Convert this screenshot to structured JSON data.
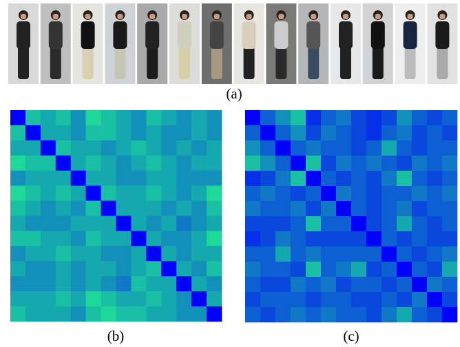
{
  "figure": {
    "colormap": {
      "low": "#0000ff",
      "high": "#20f08c"
    },
    "value_range": [
      0,
      1
    ],
    "panel_a": {
      "label": "(a)"
    },
    "panel_b": {
      "label": "(b)",
      "matrix": [
        [
          0,
          0.8,
          0.7,
          0.8,
          0.6,
          0.9,
          0.8,
          0.7,
          0.6,
          0.8,
          0.7,
          0.6,
          0.7,
          0.6
        ],
        [
          0.8,
          0,
          0.7,
          0.7,
          0.6,
          0.8,
          0.8,
          0.7,
          0.6,
          0.7,
          0.6,
          0.6,
          0.7,
          0.6
        ],
        [
          0.7,
          0.7,
          0,
          0.8,
          0.7,
          0.7,
          0.6,
          0.7,
          0.8,
          0.7,
          0.6,
          0.7,
          0.6,
          0.7
        ],
        [
          0.9,
          0.8,
          0.8,
          0,
          0.7,
          0.8,
          0.7,
          0.6,
          0.7,
          0.8,
          0.7,
          0.6,
          0.7,
          0.7
        ],
        [
          0.6,
          0.7,
          0.7,
          0.7,
          0,
          0.7,
          0.7,
          0.6,
          0.6,
          0.7,
          0.7,
          0.6,
          0.6,
          0.6
        ],
        [
          0.9,
          0.8,
          0.7,
          0.8,
          0.7,
          0,
          0.8,
          0.7,
          0.7,
          0.8,
          0.7,
          0.6,
          0.7,
          0.9
        ],
        [
          0.8,
          0.7,
          0.6,
          0.7,
          0.6,
          0.8,
          0,
          0.7,
          0.7,
          0.7,
          0.6,
          0.7,
          0.6,
          0.8
        ],
        [
          0.7,
          0.6,
          0.6,
          0.6,
          0.7,
          0.7,
          0.7,
          0,
          0.7,
          0.6,
          0.7,
          0.5,
          0.6,
          0.7
        ],
        [
          0.8,
          0.8,
          0.7,
          0.7,
          0.6,
          0.8,
          0.7,
          0.7,
          0,
          0.7,
          0.6,
          0.6,
          0.7,
          0.9
        ],
        [
          0.6,
          0.7,
          0.7,
          0.8,
          0.7,
          0.7,
          0.6,
          0.6,
          0.7,
          0,
          0.7,
          0.6,
          0.7,
          0.7
        ],
        [
          0.7,
          0.6,
          0.6,
          0.7,
          0.6,
          0.7,
          0.7,
          0.6,
          0.7,
          0.8,
          0,
          0.7,
          0.6,
          0.8
        ],
        [
          0.6,
          0.6,
          0.6,
          0.7,
          0.6,
          0.7,
          0.6,
          0.5,
          0.8,
          0.7,
          0.7,
          0,
          0.7,
          0.6
        ],
        [
          0.7,
          0.7,
          0.7,
          0.8,
          0.7,
          0.9,
          0.8,
          0.7,
          0.7,
          0.8,
          0.7,
          0.6,
          0,
          0.7
        ],
        [
          0.8,
          0.7,
          0.7,
          0.7,
          0.6,
          0.8,
          0.9,
          0.8,
          0.8,
          0.7,
          0.7,
          0.6,
          0.6,
          0
        ]
      ]
    },
    "panel_c": {
      "label": "(c)",
      "matrix": [
        [
          0,
          0.4,
          0.6,
          0.8,
          0.2,
          0.4,
          0.5,
          0.3,
          0.2,
          0.3,
          0.6,
          0.4,
          0.3,
          0.4
        ],
        [
          0.4,
          0,
          0.4,
          0.6,
          0.3,
          0.5,
          0.4,
          0.3,
          0.2,
          0.4,
          0.5,
          0.3,
          0.4,
          0.3
        ],
        [
          0.6,
          0.4,
          0,
          0.4,
          0.5,
          0.4,
          0.4,
          0.3,
          0.4,
          0.7,
          0.4,
          0.3,
          0.4,
          0.4
        ],
        [
          0.8,
          0.6,
          0.4,
          0,
          0.8,
          0.3,
          0.5,
          0.4,
          0.5,
          0.4,
          0.3,
          0.5,
          0.4,
          0.5
        ],
        [
          0.2,
          0.3,
          0.5,
          0.8,
          0,
          0.4,
          0.3,
          0.4,
          0.3,
          0.5,
          0.8,
          0.4,
          0.3,
          0.4
        ],
        [
          0.4,
          0.5,
          0.4,
          0.3,
          0.4,
          0,
          0.5,
          0.4,
          0.3,
          0.4,
          0.4,
          0.5,
          0.4,
          0.5
        ],
        [
          0.5,
          0.4,
          0.4,
          0.5,
          0.3,
          0.5,
          0,
          0.4,
          0.3,
          0.4,
          0.5,
          0.3,
          0.4,
          0.4
        ],
        [
          0.3,
          0.3,
          0.3,
          0.4,
          0.8,
          0.4,
          0.4,
          0,
          0.3,
          0.4,
          0.7,
          0.4,
          0.3,
          0.4
        ],
        [
          0.2,
          0.3,
          0.5,
          0.4,
          0.3,
          0.3,
          0.3,
          0.3,
          0,
          0.4,
          0.3,
          0.4,
          0.3,
          0.3
        ],
        [
          0.4,
          0.4,
          0.7,
          0.4,
          0.5,
          0.4,
          0.4,
          0.4,
          0.4,
          0,
          0.4,
          0.3,
          0.4,
          0.5
        ],
        [
          0.5,
          0.4,
          0.4,
          0.3,
          0.8,
          0.4,
          0.5,
          0.7,
          0.3,
          0.4,
          0,
          0.4,
          0.3,
          0.7
        ],
        [
          0.4,
          0.3,
          0.3,
          0.5,
          0.4,
          0.5,
          0.3,
          0.4,
          0.4,
          0.3,
          0.4,
          0,
          0.5,
          0.4
        ],
        [
          0.3,
          0.4,
          0.4,
          0.4,
          0.3,
          0.4,
          0.4,
          0.3,
          0.3,
          0.4,
          0.3,
          0.5,
          0,
          0.3
        ],
        [
          0.4,
          0.3,
          0.4,
          0.5,
          0.4,
          0.5,
          0.4,
          0.4,
          0.3,
          0.5,
          0.7,
          0.4,
          0.3,
          0
        ]
      ]
    }
  }
}
